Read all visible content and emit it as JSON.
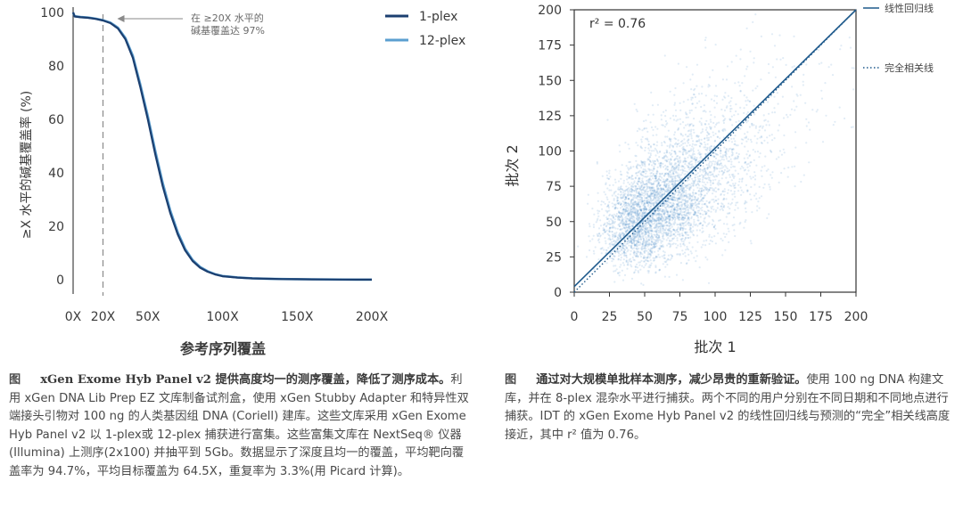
{
  "chart_data": [
    {
      "type": "line",
      "x_unit": "X",
      "xlabel": "参考序列覆盖",
      "ylabel": "≥X 水平的碱基覆盖率 (%)",
      "xlim": [
        0,
        200
      ],
      "ylim": [
        0,
        100
      ],
      "x_ticks": [
        0,
        20,
        50,
        100,
        150,
        200
      ],
      "x_tick_labels": [
        "0X",
        "20X",
        "50X",
        "100X",
        "150X",
        "200X"
      ],
      "y_ticks": [
        0,
        20,
        40,
        60,
        80,
        100
      ],
      "y_tick_labels": [
        "0",
        "20",
        "40",
        "60",
        "80",
        "100"
      ],
      "reference_line": {
        "x": 20
      },
      "annotation": {
        "line1": "在 ≥20X 水平的",
        "line2": "碱基覆盖达 97%",
        "x": 20,
        "y": 97
      },
      "legend": {
        "position": "top-right"
      },
      "series": [
        {
          "name": "1-plex",
          "color": "#1b3f70",
          "x": [
            0,
            1,
            5,
            10,
            15,
            20,
            25,
            30,
            35,
            40,
            45,
            50,
            55,
            60,
            65,
            70,
            75,
            80,
            85,
            90,
            95,
            100,
            110,
            120,
            130,
            140,
            150,
            160,
            170,
            180,
            190,
            200
          ],
          "values": [
            100,
            98.5,
            98.2,
            98,
            97.6,
            97,
            96,
            94,
            90,
            83,
            72,
            60,
            47,
            35,
            25,
            17,
            11,
            7,
            4.5,
            3,
            2,
            1.3,
            0.8,
            0.5,
            0.35,
            0.25,
            0.2,
            0.15,
            0.1,
            0.08,
            0.05,
            0.03
          ]
        },
        {
          "name": "12-plex",
          "color": "#5b9fd0",
          "x": [
            0,
            1,
            5,
            10,
            15,
            20,
            25,
            30,
            35,
            40,
            45,
            50,
            55,
            60,
            65,
            70,
            75,
            80,
            85,
            90,
            95,
            100,
            110,
            120,
            130,
            140,
            150,
            160,
            170,
            180,
            190,
            200
          ],
          "values": [
            100,
            98.6,
            98.3,
            98.1,
            97.7,
            97.1,
            96.2,
            94.3,
            90.5,
            83.8,
            73,
            61.2,
            48.3,
            36.2,
            26,
            17.8,
            11.6,
            7.4,
            4.8,
            3.2,
            2.1,
            1.4,
            0.85,
            0.55,
            0.38,
            0.27,
            0.21,
            0.16,
            0.11,
            0.08,
            0.05,
            0.03
          ]
        }
      ]
    },
    {
      "type": "scatter",
      "xlabel": "批次 1",
      "ylabel": "批次 2",
      "xlim": [
        0,
        200
      ],
      "ylim": [
        0,
        200
      ],
      "x_ticks": [
        0,
        25,
        50,
        75,
        100,
        125,
        150,
        175,
        200
      ],
      "y_ticks": [
        0,
        25,
        50,
        75,
        100,
        125,
        150,
        175,
        200
      ],
      "r2_label": "r² = 0.76",
      "r2": 0.76,
      "point_color": "#2d78c2",
      "legend": {
        "position": "right-outside"
      },
      "series": [
        {
          "name": "线性回归线",
          "kind": "regression",
          "x": [
            0,
            200
          ],
          "values": [
            4,
            200
          ],
          "color": "#1f5a8c"
        },
        {
          "name": "完全相关线",
          "kind": "identity",
          "x": [
            0,
            200
          ],
          "values": [
            0,
            200
          ],
          "color": "#1f5a8c"
        }
      ]
    }
  ],
  "caption_left": {
    "label": "图",
    "title": "xGen Exome Hyb Panel v2 提供高度均一的测序覆盖，降低了测序成本。",
    "body": "利用 xGen DNA Lib Prep EZ 文库制备试剂盒，使用 xGen Stubby Adapter 和特异性双端接头引物对 100 ng 的人类基因组 DNA (Coriell) 建库。这些文库采用 xGen Exome Hyb Panel v2 以 1-plex或 12-plex 捕获进行富集。这些富集文库在 NextSeq® 仪器 (Illumina) 上测序(2x100) 并抽平到 5Gb。数据显示了深度且均一的覆盖，平均靶向覆盖率为 94.7%，平均目标覆盖为 64.5X，重复率为 3.3%(用 Picard 计算)。"
  },
  "caption_right": {
    "label": "图",
    "title": "通过对大规模单批样本测序，减少昂贵的重新验证。",
    "body": "使用 100 ng DNA 构建文库，并在 8-plex 混杂水平进行捕获。两个不同的用户分别在不同日期和不同地点进行捕获。IDT 的 xGen Exome Hyb Panel v2 的线性回归线与预测的“完全”相关线高度接近，其中 r² 值为 0.76。"
  }
}
